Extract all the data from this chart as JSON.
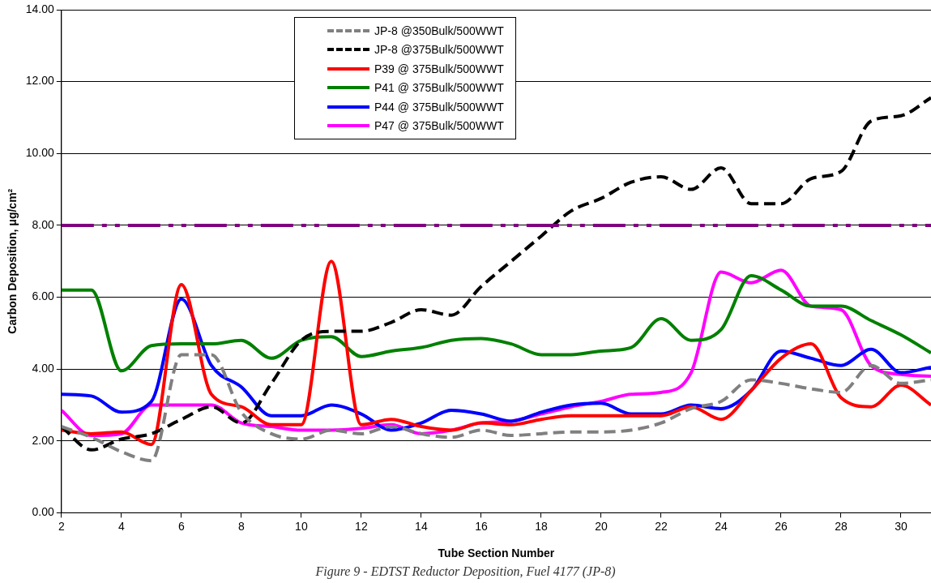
{
  "chart_data": {
    "type": "line",
    "xlabel": "Tube Section Number",
    "ylabel": "Carbon Deposition, μg/cm²",
    "x": [
      2,
      3,
      4,
      5,
      6,
      7,
      8,
      9,
      10,
      11,
      12,
      13,
      14,
      15,
      16,
      17,
      18,
      19,
      20,
      21,
      22,
      23,
      24,
      25,
      26,
      27,
      28,
      29,
      30,
      31
    ],
    "series": [
      {
        "name": "JP-8 @350Bulk/500WWT",
        "color": "#808080",
        "line_style": "dashed",
        "values": [
          2.4,
          2.1,
          1.7,
          1.45,
          4.4,
          4.4,
          2.8,
          2.2,
          2.05,
          2.3,
          2.2,
          2.4,
          2.2,
          2.1,
          2.3,
          2.15,
          2.2,
          2.25,
          2.25,
          2.3,
          2.5,
          2.9,
          3.1,
          3.7,
          3.6,
          3.45,
          3.35,
          4.1,
          3.6,
          3.7
        ]
      },
      {
        "name": "JP-8 @375Bulk/500WWT",
        "color": "#000000",
        "line_style": "dashed",
        "values": [
          2.4,
          1.75,
          2.05,
          2.2,
          2.6,
          2.95,
          2.5,
          3.6,
          4.8,
          5.05,
          5.05,
          5.3,
          5.65,
          5.5,
          6.3,
          7.0,
          7.7,
          8.4,
          8.75,
          9.2,
          9.35,
          9.0,
          9.6,
          8.6,
          8.6,
          9.3,
          9.5,
          10.9,
          11.05,
          11.55
        ]
      },
      {
        "name": "P39 @ 375Bulk/500WWT",
        "color": "#ff0000",
        "line_style": "solid",
        "values": [
          2.3,
          2.2,
          2.25,
          1.9,
          6.35,
          3.3,
          2.95,
          2.45,
          2.45,
          7.0,
          2.45,
          2.6,
          2.4,
          2.3,
          2.5,
          2.45,
          2.6,
          2.7,
          2.7,
          2.7,
          2.7,
          2.95,
          2.6,
          3.4,
          4.3,
          4.7,
          3.2,
          2.95,
          3.55,
          3.0
        ]
      },
      {
        "name": "P41 @ 375Bulk/500WWT",
        "color": "#008000",
        "line_style": "solid",
        "values": [
          6.2,
          6.2,
          3.95,
          4.65,
          4.7,
          4.7,
          4.8,
          4.3,
          4.8,
          4.9,
          4.35,
          4.5,
          4.6,
          4.8,
          4.85,
          4.7,
          4.4,
          4.4,
          4.5,
          4.6,
          5.4,
          4.8,
          5.1,
          6.6,
          6.2,
          5.75,
          5.75,
          5.35,
          4.95,
          4.45
        ]
      },
      {
        "name": "P44 @ 375Bulk/500WWT",
        "color": "#0000ff",
        "line_style": "solid",
        "values": [
          3.3,
          3.25,
          2.8,
          3.1,
          5.95,
          4.1,
          3.5,
          2.7,
          2.7,
          3.0,
          2.75,
          2.3,
          2.5,
          2.85,
          2.75,
          2.55,
          2.8,
          3.0,
          3.05,
          2.75,
          2.75,
          3.0,
          2.9,
          3.4,
          4.5,
          4.3,
          4.1,
          4.55,
          3.9,
          4.05
        ]
      },
      {
        "name": "P47 @ 375Bulk/500WWT",
        "color": "#ff00ff",
        "line_style": "solid",
        "values": [
          2.85,
          2.15,
          2.2,
          3.0,
          3.0,
          3.0,
          2.5,
          2.4,
          2.3,
          2.3,
          2.35,
          2.45,
          2.2,
          2.3,
          2.5,
          2.55,
          2.75,
          2.95,
          3.1,
          3.3,
          3.35,
          3.9,
          6.7,
          6.4,
          6.75,
          5.75,
          5.65,
          4.1,
          3.85,
          3.8
        ]
      }
    ],
    "ref_lines": [
      {
        "axis": "y",
        "value": 8,
        "color": "#800080",
        "line_style": "dashed"
      }
    ],
    "xlim": [
      2,
      31
    ],
    "xticks": [
      2,
      4,
      6,
      8,
      10,
      12,
      14,
      16,
      18,
      20,
      22,
      24,
      26,
      28,
      30
    ],
    "ylim": [
      0,
      14
    ],
    "yticks": [
      {
        "value": 0,
        "label": "0.00"
      },
      {
        "value": 2,
        "label": "2.00"
      },
      {
        "value": 4,
        "label": "4.00"
      },
      {
        "value": 6,
        "label": "6.00"
      },
      {
        "value": 8,
        "label": "8.00"
      },
      {
        "value": 10,
        "label": "10.00"
      },
      {
        "value": 12,
        "label": "12.00"
      },
      {
        "value": 14,
        "label": "14.00"
      }
    ],
    "grid": "y",
    "legend": "top",
    "marker": "none",
    "annotations": [
      "Figure 9 - EDTST Reductor Deposition, Fuel 4177 (JP-8)"
    ]
  }
}
